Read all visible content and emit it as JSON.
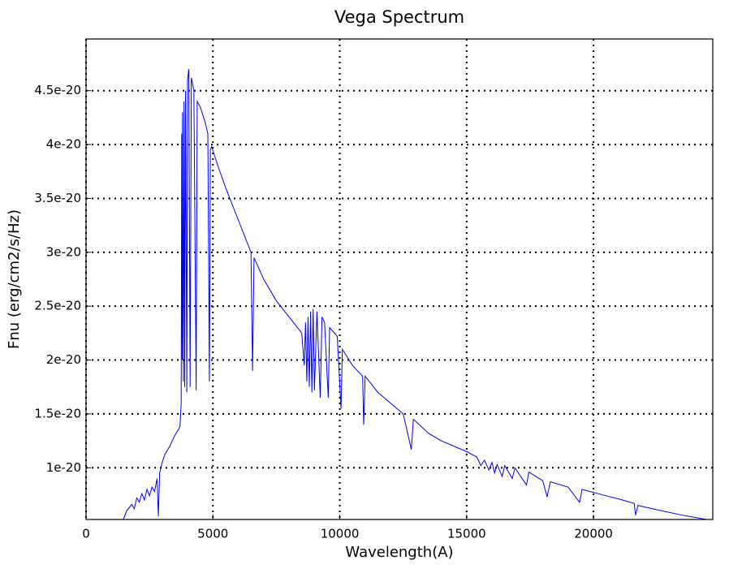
{
  "chart_data": {
    "type": "line",
    "title": "Vega Spectrum",
    "x_label": "Wavelength(A)",
    "y_label": "Fnu (erg/cm2/s/Hz)",
    "x": [
      1430,
      1600,
      1800,
      1900,
      2000,
      2100,
      2200,
      2300,
      2400,
      2500,
      2600,
      2700,
      2800,
      2850,
      2900,
      3000,
      3100,
      3300,
      3500,
      3700,
      3750,
      3770,
      3790,
      3800,
      3835,
      3860,
      3889,
      3920,
      3970,
      4000,
      4050,
      4101,
      4150,
      4250,
      4340,
      4380,
      4500,
      4700,
      4800,
      4861,
      4900,
      4950,
      5200,
      5500,
      6000,
      6500,
      6563,
      6620,
      7000,
      7500,
      8000,
      8500,
      8600,
      8650,
      8700,
      8750,
      8800,
      8850,
      8900,
      8950,
      9000,
      9100,
      9230,
      9300,
      9400,
      9546,
      9600,
      9900,
      10050,
      10100,
      10500,
      10900,
      10940,
      11000,
      11500,
      12000,
      12500,
      12820,
      12900,
      13500,
      14000,
      15000,
      15400,
      15560,
      15700,
      15880,
      16000,
      16100,
      16200,
      16400,
      16500,
      16800,
      16900,
      17360,
      17450,
      18000,
      18170,
      18300,
      19000,
      19450,
      19550,
      20500,
      21000,
      21600,
      21660,
      21750,
      22500,
      23500,
      24700
    ],
    "values": [
      5e-21,
      6e-21,
      6.6e-21,
      6.2e-21,
      7.2e-21,
      6.8e-21,
      7.6e-21,
      7e-21,
      8e-21,
      7.4e-21,
      8.2e-21,
      7.8e-21,
      9e-21,
      5.5e-21,
      9.5e-21,
      1.05e-20,
      1.12e-20,
      1.2e-20,
      1.3e-20,
      1.38e-20,
      1.6e-20,
      4.1e-20,
      2e-20,
      4.3e-20,
      1.8e-20,
      4.4e-20,
      1.75e-20,
      4.5e-20,
      1.7e-20,
      4.6e-20,
      4.7e-20,
      1.75e-20,
      4.62e-20,
      4.5e-20,
      1.72e-20,
      4.4e-20,
      4.35e-20,
      4.2e-20,
      4.1e-20,
      1.8e-20,
      3.95e-20,
      3.98e-20,
      3.8e-20,
      3.6e-20,
      3.3e-20,
      3e-20,
      1.9e-20,
      2.95e-20,
      2.75e-20,
      2.55e-20,
      2.4e-20,
      2.25e-20,
      1.95e-20,
      2.35e-20,
      1.8e-20,
      2.4e-20,
      1.75e-20,
      2.45e-20,
      1.7e-20,
      2.47e-20,
      1.72e-20,
      2.45e-20,
      1.65e-20,
      2.4e-20,
      2.35e-20,
      1.65e-20,
      2.3e-20,
      2.22e-20,
      1.55e-20,
      2.1e-20,
      1.95e-20,
      1.85e-20,
      1.4e-20,
      1.85e-20,
      1.7e-20,
      1.6e-20,
      1.5e-20,
      1.17e-20,
      1.45e-20,
      1.32e-20,
      1.25e-20,
      1.15e-20,
      1.1e-20,
      1.02e-20,
      1.07e-20,
      9.8e-21,
      1.05e-20,
      9.5e-21,
      1.03e-20,
      9.2e-21,
      1.02e-20,
      9e-21,
      1e-20,
      8.4e-21,
      9.6e-21,
      8.8e-21,
      7.3e-21,
      8.7e-21,
      8.2e-21,
      6.8e-21,
      8e-21,
      7.4e-21,
      7.1e-21,
      6.7e-21,
      5.6e-21,
      6.5e-21,
      6.1e-21,
      5.6e-21,
      5.1e-21
    ],
    "color": "#0000ff",
    "xlim": [
      0,
      24700
    ],
    "xticks": [
      0,
      5000,
      10000,
      15000,
      20000
    ],
    "ylim": [
      5.2e-21,
      4.98e-20
    ],
    "yticks": [
      1e-20,
      1.5e-20,
      2e-20,
      2.5e-20,
      3e-20,
      3.5e-20,
      4e-20,
      4.5e-20
    ],
    "grid": true
  }
}
